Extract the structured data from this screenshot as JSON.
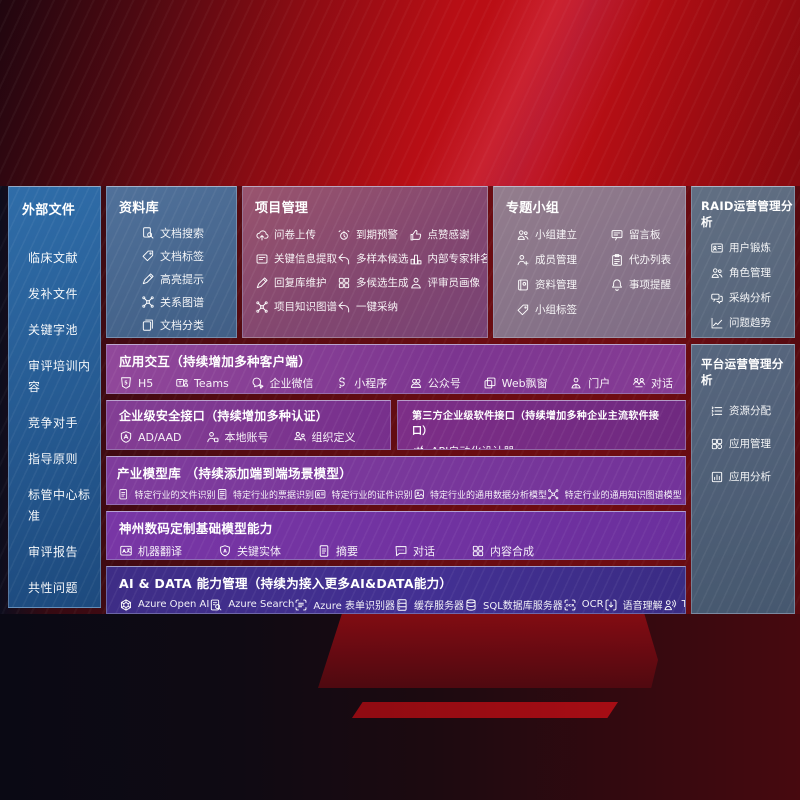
{
  "left_sidebar": {
    "title": "外部文件",
    "items": [
      "临床文献",
      "发补文件",
      "关键字池",
      "审评培训内容",
      "竞争对手",
      "指导原则",
      "标管中心标准",
      "审评报告",
      "共性问题"
    ]
  },
  "panels": {
    "repository": {
      "title": "资料库",
      "items": [
        {
          "icon": "doc-search",
          "label": "文档搜索"
        },
        {
          "icon": "tag",
          "label": "文档标签"
        },
        {
          "icon": "pen",
          "label": "高亮提示"
        },
        {
          "icon": "graph",
          "label": "关系图谱"
        },
        {
          "icon": "doc-copy",
          "label": "文档分类"
        }
      ]
    },
    "project": {
      "title": "项目管理",
      "items": [
        {
          "icon": "cloud-upload",
          "label": "问卷上传"
        },
        {
          "icon": "alarm",
          "label": "到期预警"
        },
        {
          "icon": "thumb-up",
          "label": "点赞感谢"
        },
        {
          "icon": "doc-extract",
          "label": "关键信息提取"
        },
        {
          "icon": "reply-arrow",
          "label": "多样本候选"
        },
        {
          "icon": "podium",
          "label": "内部专家排名"
        },
        {
          "icon": "pen",
          "label": "回复库维护"
        },
        {
          "icon": "puzzle",
          "label": "多候选生成"
        },
        {
          "icon": "person",
          "label": "评审员画像"
        },
        {
          "icon": "graph",
          "label": "项目知识图谱"
        },
        {
          "icon": "reply-arrow",
          "label": "一键采纳"
        }
      ]
    },
    "groups": {
      "title": "专题小组",
      "items": [
        {
          "icon": "people",
          "label": "小组建立"
        },
        {
          "icon": "bbs",
          "label": "留言板"
        },
        {
          "icon": "person-add",
          "label": "成员管理"
        },
        {
          "icon": "clipboard",
          "label": "代办列表"
        },
        {
          "icon": "book",
          "label": "资料管理"
        },
        {
          "icon": "bell",
          "label": "事项提醒"
        },
        {
          "icon": "tag",
          "label": "小组标签"
        }
      ]
    },
    "raid": {
      "title": "RAID运营管理分析",
      "items": [
        {
          "icon": "id-card",
          "label": "用户锻炼"
        },
        {
          "icon": "people",
          "label": "角色管理"
        },
        {
          "icon": "chat-qa",
          "label": "采纳分析"
        },
        {
          "icon": "trend",
          "label": "问题趋势"
        }
      ]
    },
    "platform": {
      "title": "平台运营管理分析",
      "items": [
        {
          "icon": "list",
          "label": "资源分配"
        },
        {
          "icon": "grid",
          "label": "应用管理"
        },
        {
          "icon": "chart-doc",
          "label": "应用分析"
        }
      ]
    },
    "interaction": {
      "title": "应用交互（持续增加多种客户端）",
      "items": [
        {
          "icon": "html5",
          "label": "H5"
        },
        {
          "icon": "teams",
          "label": "Teams"
        },
        {
          "icon": "wechat-work",
          "label": "企业微信"
        },
        {
          "icon": "mini-program",
          "label": "小程序"
        },
        {
          "icon": "official-account",
          "label": "公众号"
        },
        {
          "icon": "web-window",
          "label": "Web飘窗"
        },
        {
          "icon": "portal",
          "label": "门户"
        },
        {
          "icon": "dialog",
          "label": "对话"
        }
      ]
    },
    "security": {
      "title": "企业级安全接口（持续增加多种认证）",
      "items": [
        {
          "icon": "ad-shield",
          "label": "AD/AAD"
        },
        {
          "icon": "local-account",
          "label": "本地账号"
        },
        {
          "icon": "org-define",
          "label": "组织定义"
        }
      ]
    },
    "thirdparty": {
      "title": "第三方企业级软件接口（持续增加多种企业主流软件接口）",
      "items": [
        {
          "icon": "api-gear",
          "label": "API自动化设计器"
        }
      ]
    },
    "industry": {
      "title": "产业模型库 （持续添加端到端场景模型）",
      "items": [
        {
          "icon": "doc",
          "label": "特定行业的文件识别"
        },
        {
          "icon": "doc-lines",
          "label": "特定行业的票据识别"
        },
        {
          "icon": "id-card",
          "label": "特定行业的证件识别"
        },
        {
          "icon": "image",
          "label": "特定行业的通用数据分析模型"
        },
        {
          "icon": "graph",
          "label": "特定行业的通用知识图谱模型"
        }
      ]
    },
    "base_models": {
      "title": "神州数码定制基础模型能力",
      "items": [
        {
          "icon": "translate",
          "label": "机器翻译"
        },
        {
          "icon": "entity",
          "label": "关键实体"
        },
        {
          "icon": "doc",
          "label": "摘要"
        },
        {
          "icon": "chat",
          "label": "对话"
        },
        {
          "icon": "puzzle",
          "label": "内容合成"
        }
      ]
    },
    "ai_data": {
      "title": "AI & DATA 能力管理（持续为接入更多AI&DATA能力）",
      "items": [
        {
          "icon": "openai",
          "label": "Azure Open AI"
        },
        {
          "icon": "search-doc",
          "label": "Azure Search"
        },
        {
          "icon": "form",
          "label": "Azure 表单识别器"
        },
        {
          "icon": "server",
          "label": "缓存服务器"
        },
        {
          "icon": "database",
          "label": "SQL数据库服务器"
        },
        {
          "icon": "ocr",
          "label": "OCR"
        },
        {
          "icon": "speech",
          "label": "语音理解"
        },
        {
          "icon": "tts",
          "label": "TTS"
        }
      ]
    }
  },
  "colors": {
    "background_red": "#b80e15",
    "sidebar_blue": "#2f6da9",
    "repository_blue": "#4a6b93",
    "project_mauve": "#8a4a70",
    "groups_lilac": "#87748a",
    "ops_slate": "#5a6980",
    "interaction_purple": "#86409a",
    "industry_purple": "#7a389b",
    "base_purple": "#7133a1",
    "aidata_indigo": "#3f2e8a"
  }
}
